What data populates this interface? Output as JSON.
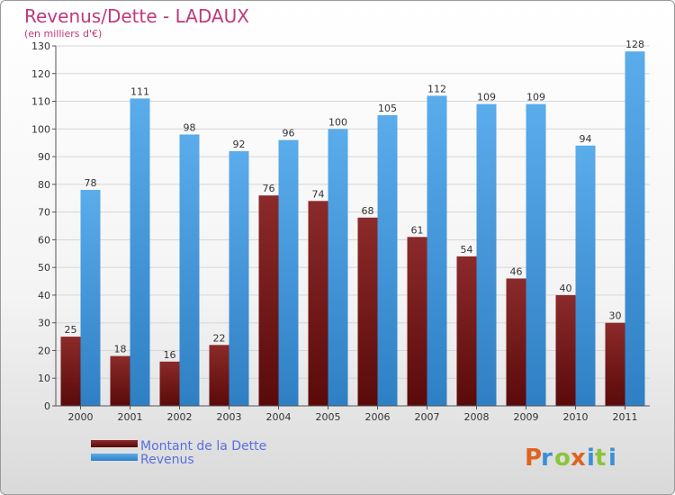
{
  "chart_data": {
    "type": "bar",
    "title": "Revenus/Dette - LADAUX",
    "subtitle": "(en milliers d'€)",
    "categories": [
      "2000",
      "2001",
      "2002",
      "2003",
      "2004",
      "2005",
      "2006",
      "2007",
      "2008",
      "2009",
      "2010",
      "2011"
    ],
    "series": [
      {
        "name": "Montant de la Dette",
        "color": "#7a1a1a",
        "values": [
          25,
          18,
          16,
          22,
          76,
          74,
          68,
          61,
          54,
          46,
          40,
          30
        ]
      },
      {
        "name": "Revenus",
        "color": "#4a9ee0",
        "values": [
          78,
          111,
          98,
          92,
          96,
          100,
          105,
          112,
          109,
          109,
          94,
          128
        ]
      }
    ],
    "ylim": [
      0,
      130
    ],
    "yticks": [
      0,
      10,
      20,
      30,
      40,
      50,
      60,
      70,
      80,
      90,
      100,
      110,
      120,
      130
    ],
    "grid": true,
    "legend_position": "bottom-left"
  },
  "logo": {
    "text": "Proxiti",
    "letters": [
      "P",
      "r",
      "o",
      "x",
      "i",
      "t",
      "i"
    ]
  }
}
